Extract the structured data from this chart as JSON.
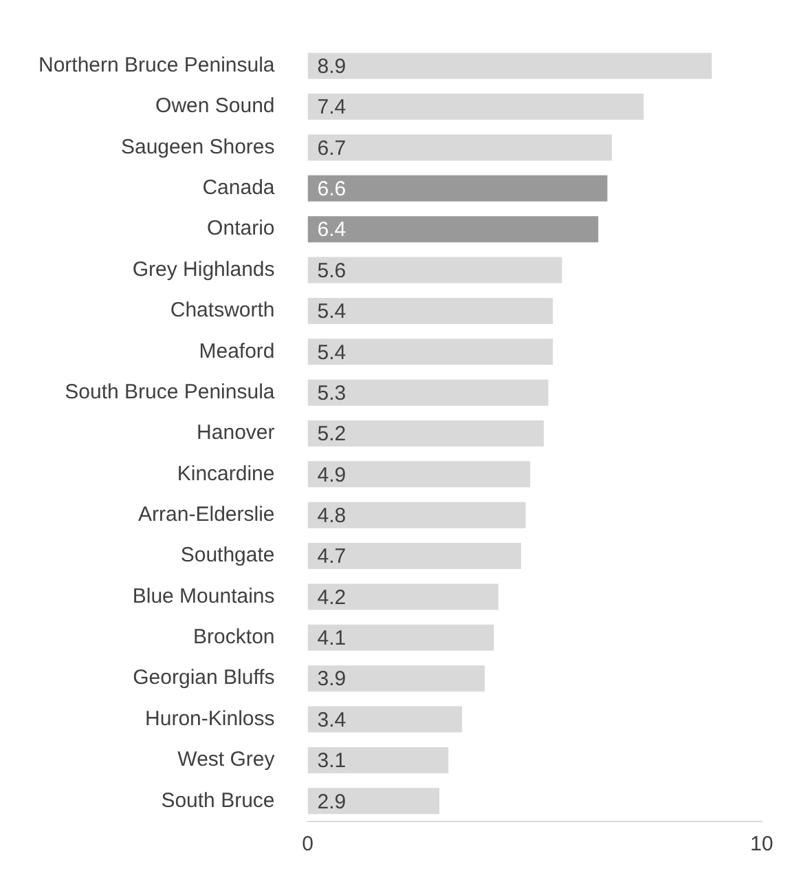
{
  "chart_data": {
    "type": "bar",
    "orientation": "horizontal",
    "categories": [
      "Northern Bruce Peninsula",
      "Owen Sound",
      "Saugeen Shores",
      "Canada",
      "Ontario",
      "Grey Highlands",
      "Chatsworth",
      "Meaford",
      "South Bruce Peninsula",
      "Hanover",
      "Kincardine",
      "Arran-Elderslie",
      "Southgate",
      "Blue Mountains",
      "Brockton",
      "Georgian Bluffs",
      "Huron-Kinloss",
      "West Grey",
      "South Bruce"
    ],
    "values": [
      8.9,
      7.4,
      6.7,
      6.6,
      6.4,
      5.6,
      5.4,
      5.4,
      5.3,
      5.2,
      4.9,
      4.8,
      4.7,
      4.2,
      4.1,
      3.9,
      3.4,
      3.1,
      2.9
    ],
    "colors": [
      "#d9d9d9",
      "#d9d9d9",
      "#d9d9d9",
      "#999999",
      "#999999",
      "#d9d9d9",
      "#d9d9d9",
      "#d9d9d9",
      "#d9d9d9",
      "#d9d9d9",
      "#d9d9d9",
      "#d9d9d9",
      "#d9d9d9",
      "#d9d9d9",
      "#d9d9d9",
      "#d9d9d9",
      "#d9d9d9",
      "#d9d9d9",
      "#d9d9d9"
    ],
    "xlim": [
      0,
      10
    ],
    "xticks": [
      0,
      10
    ],
    "grid": false,
    "legend": false,
    "data_labels": true
  }
}
